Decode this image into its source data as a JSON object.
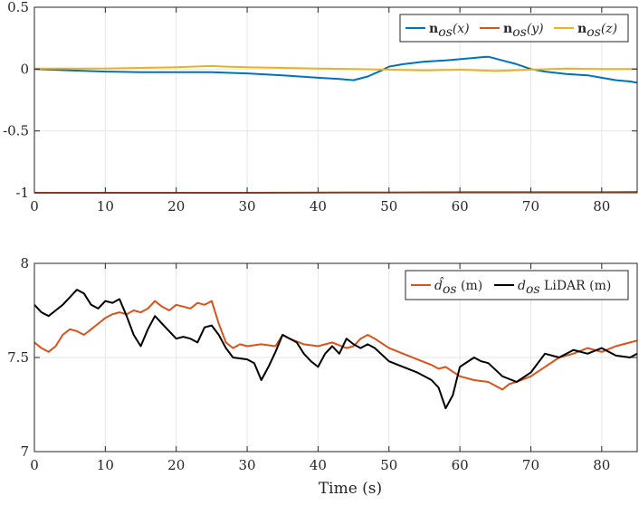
{
  "chart_data": [
    {
      "type": "line",
      "title": "",
      "xlabel": "",
      "ylabel": "",
      "xlim": [
        0,
        85
      ],
      "ylim": [
        -1,
        0.5
      ],
      "xticks": [
        0,
        10,
        20,
        30,
        40,
        50,
        60,
        70,
        80
      ],
      "yticks": [
        -1,
        -0.5,
        0,
        0.5
      ],
      "xtick_labels": [
        "0",
        "10",
        "20",
        "30",
        "40",
        "50",
        "60",
        "70",
        "80"
      ],
      "ytick_labels": [
        "-1",
        "-0.5",
        "0",
        "0.5"
      ],
      "grid": true,
      "legend_position": "top-right",
      "series": [
        {
          "name": "n_os(x)",
          "legend_bold": "n",
          "legend_sub": "os",
          "legend_arg": "(x)",
          "color": "#0072BD",
          "x": [
            0,
            5,
            10,
            15,
            20,
            25,
            30,
            35,
            40,
            43,
            45,
            47,
            49,
            50,
            52,
            55,
            58,
            60,
            62,
            63,
            64,
            65,
            66,
            68,
            70,
            72,
            75,
            78,
            80,
            82,
            84,
            85
          ],
          "y": [
            0,
            -0.01,
            -0.02,
            -0.025,
            -0.025,
            -0.025,
            -0.035,
            -0.05,
            -0.07,
            -0.08,
            -0.09,
            -0.06,
            -0.01,
            0.02,
            0.04,
            0.06,
            0.07,
            0.08,
            0.09,
            0.095,
            0.1,
            0.085,
            0.07,
            0.04,
            0.0,
            -0.02,
            -0.04,
            -0.05,
            -0.07,
            -0.09,
            -0.1,
            -0.11
          ]
        },
        {
          "name": "n_os(y)",
          "legend_bold": "n",
          "legend_sub": "os",
          "legend_arg": "(y)",
          "color": "#D95319",
          "x": [
            0,
            10,
            20,
            30,
            40,
            50,
            60,
            70,
            80,
            85
          ],
          "y": [
            -1.0,
            -1.0,
            -1.0,
            -1.0,
            -0.998,
            -0.997,
            -0.995,
            -0.995,
            -0.994,
            -0.993
          ]
        },
        {
          "name": "n_os(z)",
          "legend_bold": "n",
          "legend_sub": "os",
          "legend_arg": "(z)",
          "color": "#EDB120",
          "x": [
            0,
            5,
            10,
            15,
            20,
            25,
            27,
            30,
            35,
            40,
            45,
            50,
            55,
            60,
            65,
            70,
            75,
            80,
            85
          ],
          "y": [
            0.005,
            0.005,
            0.005,
            0.01,
            0.015,
            0.025,
            0.02,
            0.015,
            0.01,
            0.005,
            0.0,
            -0.005,
            -0.01,
            -0.005,
            -0.015,
            -0.005,
            0.005,
            0.0,
            0.0
          ]
        }
      ]
    },
    {
      "type": "line",
      "title": "",
      "xlabel": "Time (s)",
      "ylabel": "",
      "xlim": [
        0,
        85
      ],
      "ylim": [
        7,
        8
      ],
      "xticks": [
        0,
        10,
        20,
        30,
        40,
        50,
        60,
        70,
        80
      ],
      "yticks": [
        7,
        7.5,
        8
      ],
      "xtick_labels": [
        "0",
        "10",
        "20",
        "30",
        "40",
        "50",
        "60",
        "70",
        "80"
      ],
      "ytick_labels": [
        "7",
        "7.5",
        "8"
      ],
      "grid": true,
      "legend_position": "top-right",
      "series": [
        {
          "name": "d̂_os (m)",
          "legend_main": "d̂",
          "legend_sub": "os",
          "legend_tail": " (m)",
          "color": "#D95319",
          "x": [
            0,
            1,
            2,
            3,
            4,
            5,
            6,
            7,
            8,
            9,
            10,
            11,
            12,
            13,
            14,
            15,
            16,
            17,
            18,
            19,
            20,
            21,
            22,
            23,
            24,
            25,
            26,
            27,
            28,
            29,
            30,
            32,
            34,
            35,
            36,
            38,
            40,
            42,
            44,
            45,
            46,
            47,
            48,
            50,
            52,
            54,
            56,
            57,
            58,
            60,
            62,
            64,
            65,
            66,
            67,
            68,
            70,
            72,
            74,
            76,
            78,
            80,
            82,
            84,
            85
          ],
          "y": [
            7.58,
            7.55,
            7.53,
            7.56,
            7.62,
            7.65,
            7.64,
            7.62,
            7.65,
            7.68,
            7.71,
            7.73,
            7.74,
            7.73,
            7.75,
            7.74,
            7.76,
            7.8,
            7.77,
            7.75,
            7.78,
            7.77,
            7.76,
            7.79,
            7.78,
            7.8,
            7.68,
            7.58,
            7.55,
            7.57,
            7.56,
            7.57,
            7.56,
            7.62,
            7.6,
            7.57,
            7.56,
            7.58,
            7.55,
            7.56,
            7.6,
            7.62,
            7.6,
            7.55,
            7.52,
            7.49,
            7.46,
            7.44,
            7.45,
            7.4,
            7.38,
            7.37,
            7.35,
            7.33,
            7.36,
            7.37,
            7.4,
            7.45,
            7.5,
            7.52,
            7.55,
            7.53,
            7.56,
            7.58,
            7.59
          ]
        },
        {
          "name": "d_os LiDAR (m)",
          "legend_main": "d",
          "legend_sub": "os",
          "legend_tail": " LiDAR (m)",
          "color": "#000000",
          "x": [
            0,
            1,
            2,
            3,
            4,
            5,
            6,
            7,
            8,
            9,
            10,
            11,
            12,
            13,
            14,
            15,
            16,
            17,
            18,
            19,
            20,
            21,
            22,
            23,
            24,
            25,
            26,
            27,
            28,
            30,
            31,
            32,
            33,
            34,
            35,
            36,
            37,
            38,
            39,
            40,
            41,
            42,
            43,
            44,
            45,
            46,
            47,
            48,
            50,
            52,
            54,
            55,
            56,
            57,
            58,
            59,
            60,
            62,
            63,
            64,
            66,
            68,
            70,
            72,
            74,
            76,
            78,
            80,
            82,
            84,
            85
          ],
          "y": [
            7.78,
            7.74,
            7.72,
            7.75,
            7.78,
            7.82,
            7.86,
            7.84,
            7.78,
            7.76,
            7.8,
            7.79,
            7.81,
            7.72,
            7.62,
            7.56,
            7.65,
            7.72,
            7.68,
            7.64,
            7.6,
            7.61,
            7.6,
            7.58,
            7.66,
            7.67,
            7.62,
            7.55,
            7.5,
            7.49,
            7.47,
            7.38,
            7.45,
            7.53,
            7.62,
            7.6,
            7.58,
            7.52,
            7.48,
            7.45,
            7.52,
            7.56,
            7.52,
            7.6,
            7.57,
            7.55,
            7.57,
            7.55,
            7.48,
            7.45,
            7.42,
            7.4,
            7.38,
            7.34,
            7.23,
            7.3,
            7.45,
            7.5,
            7.48,
            7.47,
            7.4,
            7.37,
            7.42,
            7.52,
            7.5,
            7.54,
            7.52,
            7.55,
            7.51,
            7.5,
            7.52
          ]
        }
      ]
    }
  ]
}
